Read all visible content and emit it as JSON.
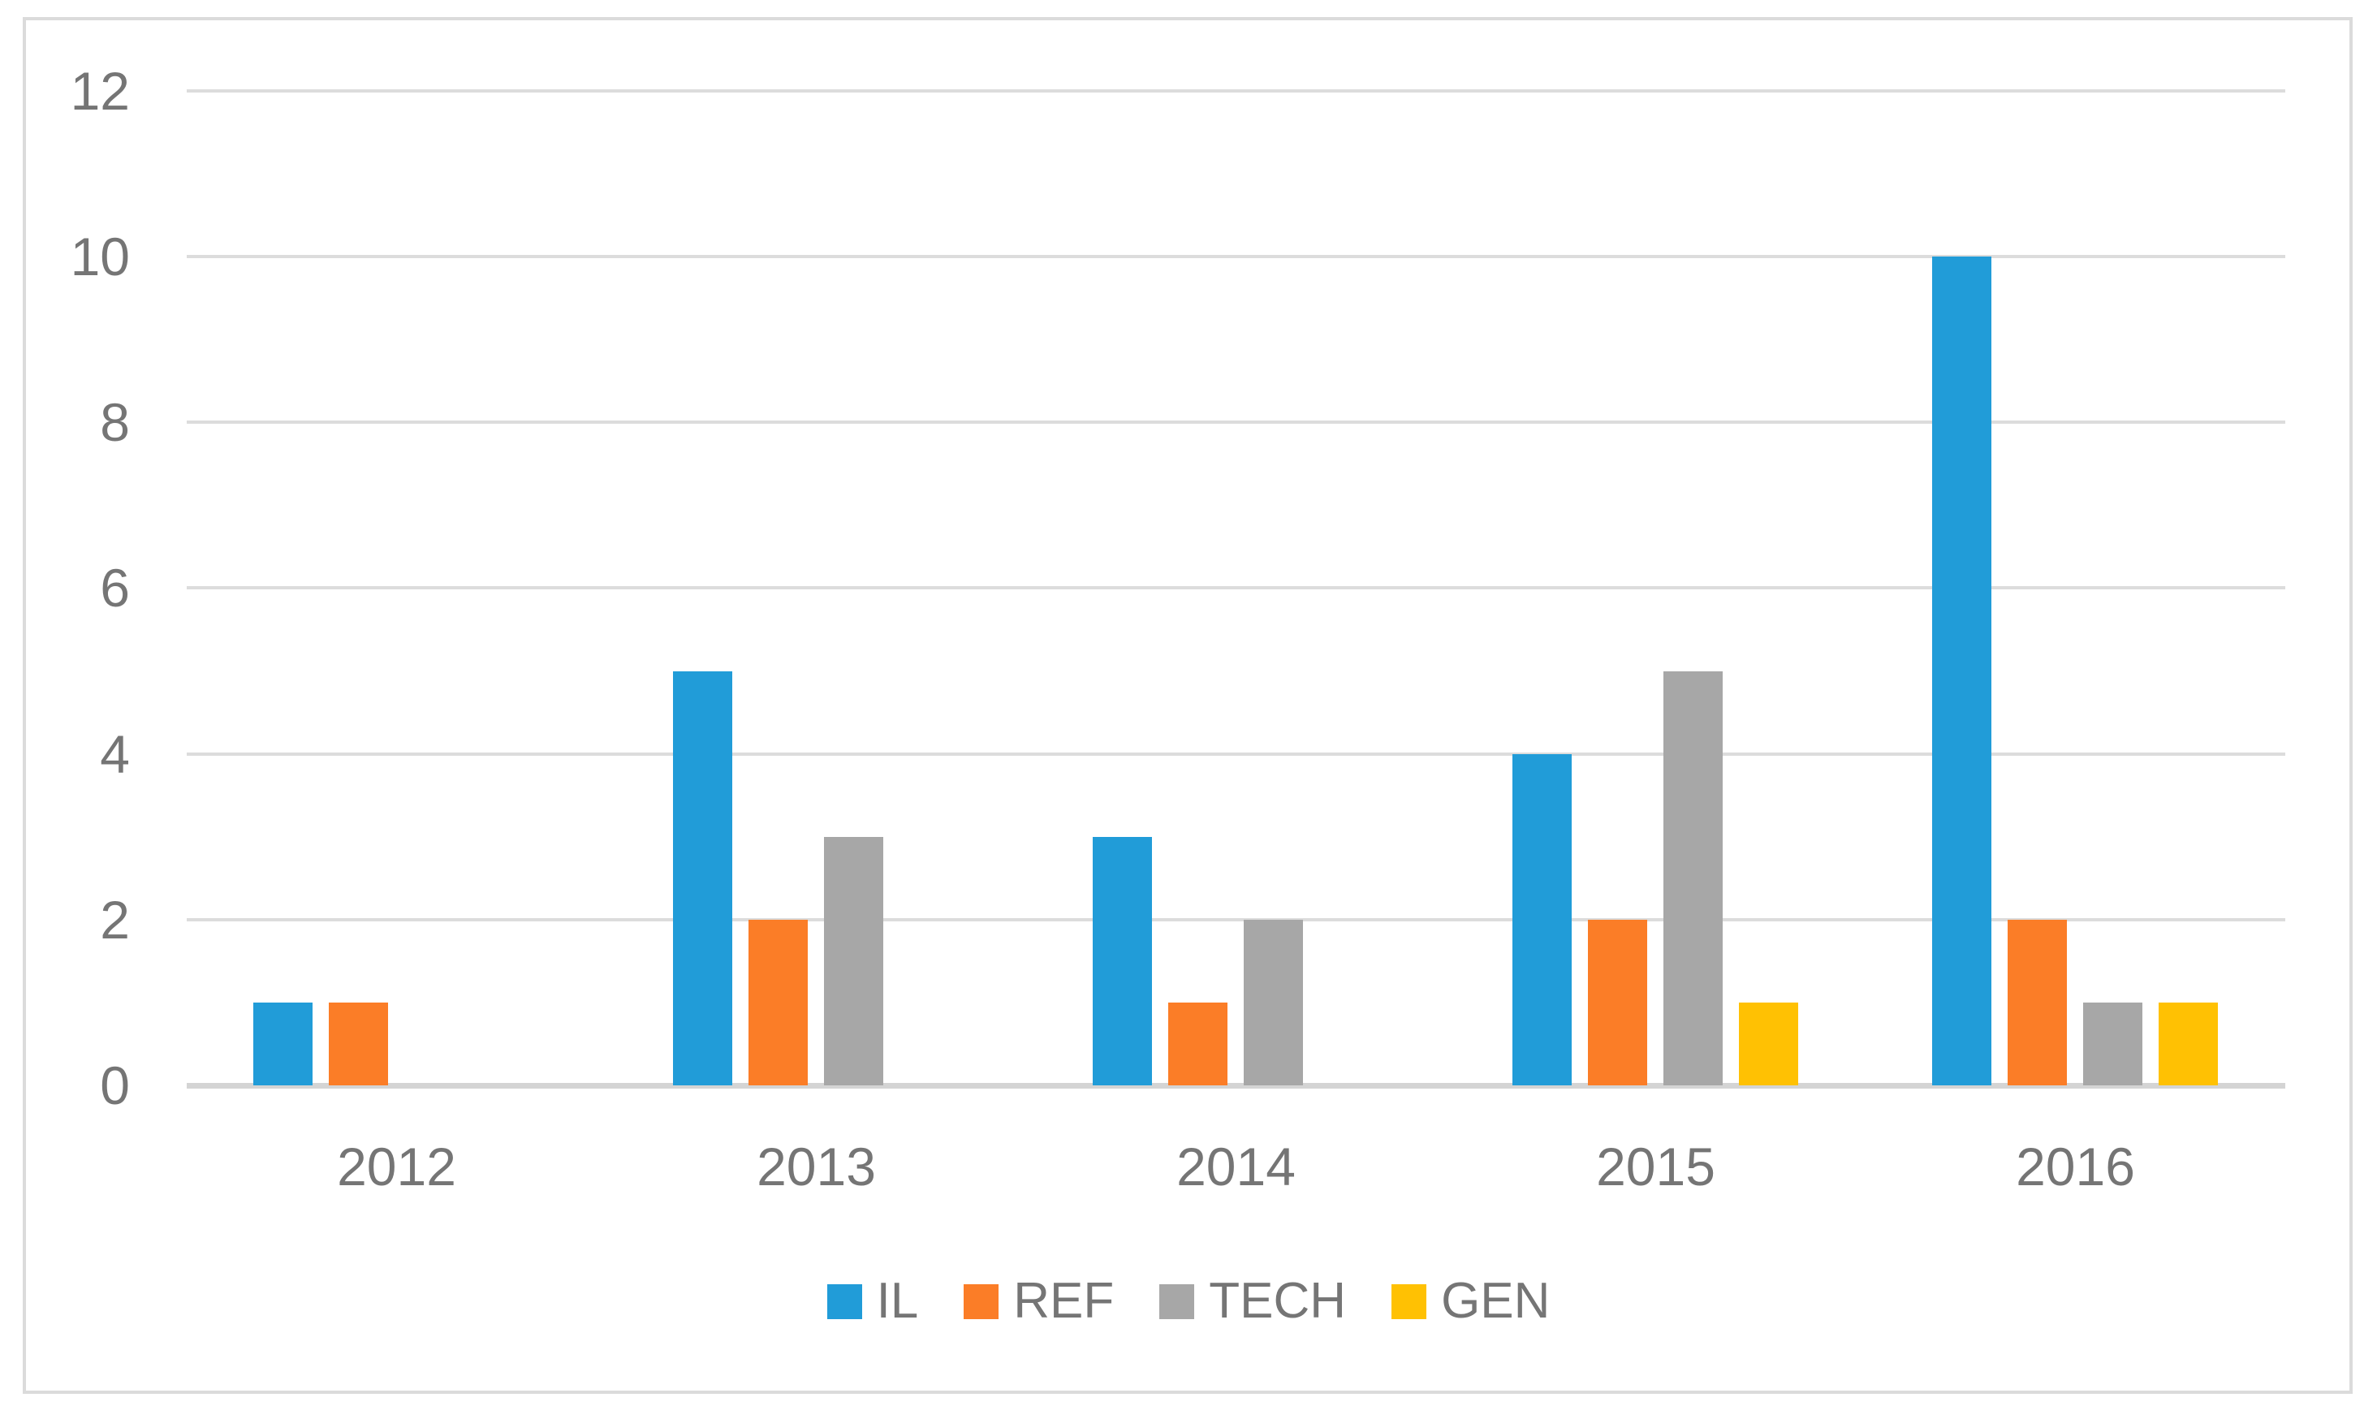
{
  "chart_data": {
    "type": "bar",
    "title": "",
    "xlabel": "",
    "ylabel": "",
    "categories": [
      "2012",
      "2013",
      "2014",
      "2015",
      "2016"
    ],
    "series": [
      {
        "name": "IL",
        "color": "#219cd8",
        "values": [
          1,
          5,
          3,
          4,
          10
        ]
      },
      {
        "name": "REF",
        "color": "#fb7d27",
        "values": [
          1,
          2,
          1,
          2,
          2
        ]
      },
      {
        "name": "TECH",
        "color": "#a7a7a7",
        "values": [
          0,
          3,
          2,
          5,
          1
        ]
      },
      {
        "name": "GEN",
        "color": "#ffc103",
        "values": [
          0,
          0,
          0,
          1,
          1
        ]
      }
    ],
    "ylim": [
      0,
      12
    ],
    "yticks": [
      0,
      2,
      4,
      6,
      8,
      10,
      12
    ],
    "grid": true,
    "legend_position": "bottom-center"
  },
  "colors": {
    "axis_text": "#757575",
    "gridline": "#dcdcdc",
    "axis_line": "#d4d4d4",
    "frame_border": "#dbdbdb",
    "background": "#ffffff"
  }
}
